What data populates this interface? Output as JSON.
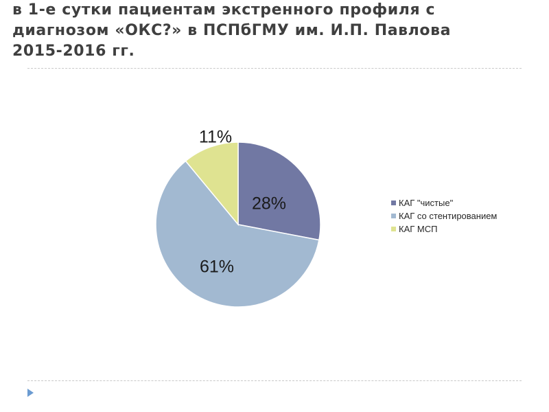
{
  "slide": {
    "title_lines": [
      "в 1-е сутки пациентам экстренного профиля с",
      "диагнозом «ОКС?» в ПСПбГМУ им. И.П. Павлова",
      "2015-2016 гг."
    ]
  },
  "chart_data": {
    "type": "pie",
    "categories": [
      "КАГ \"чистые\"",
      "КАГ со стентированием",
      "КАГ МСП"
    ],
    "values": [
      28,
      61,
      11
    ],
    "labels": [
      "28%",
      "61%",
      "11%"
    ],
    "colors": [
      "#7178a3",
      "#a2b9d1",
      "#dfe391"
    ],
    "start": "12 o'clock, clockwise",
    "legend_position": "right"
  },
  "legend": {
    "items": [
      {
        "label": "КАГ \"чистые\"",
        "color": "#7178a3"
      },
      {
        "label": "КАГ со стентированием",
        "color": "#a2b9d1"
      },
      {
        "label": "КАГ МСП",
        "color": "#dfe391"
      }
    ]
  }
}
